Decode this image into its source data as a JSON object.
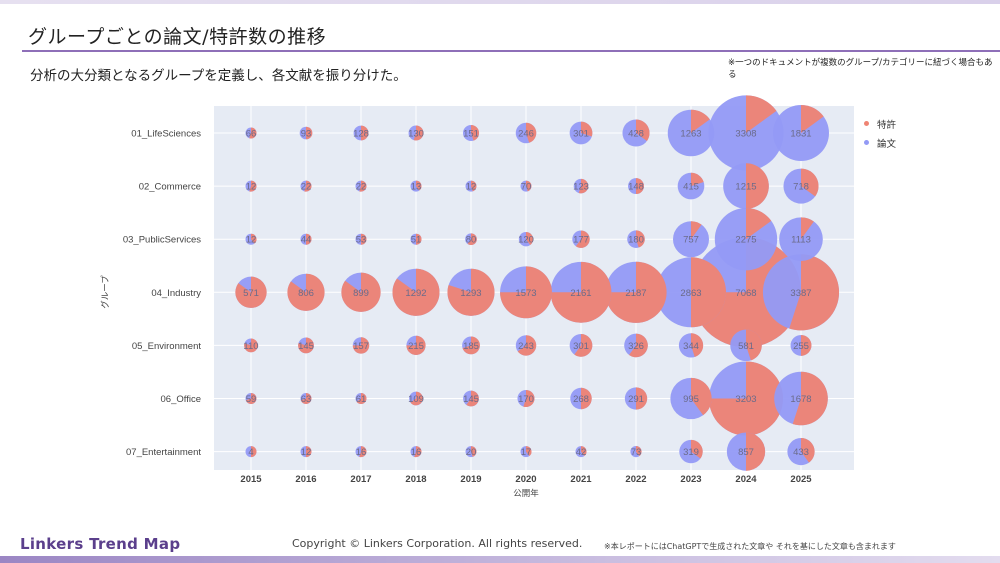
{
  "header": {
    "title": "グループごとの論文/特許数の推移",
    "subtitle": "分析の大分類となるグループを定義し、各文献を振り分けた。",
    "note": "※一つのドキュメントが複数のグループ/カテゴリーに紐づく場合もある"
  },
  "footer": {
    "logo": "Linkers Trend Map",
    "copyright": "Copyright © Linkers Corporation. All rights reserved.",
    "note": "※本レポートにはChatGPTで生成された文章や それを基にした文章も含まれます"
  },
  "colors": {
    "patent": "#ef8473",
    "paper": "#939af5",
    "plot_bg": "#e6ebf4",
    "title_rule": "#8e6fb8"
  },
  "legend": {
    "items": [
      {
        "label": "特許",
        "color": "#ef8473"
      },
      {
        "label": "論文",
        "color": "#939af5"
      }
    ]
  },
  "chart_data": {
    "type": "scatter",
    "subtype": "bubble-pie",
    "title": "",
    "xlabel": "公開年",
    "ylabel": "グループ",
    "x": [
      "2015",
      "2016",
      "2017",
      "2018",
      "2019",
      "2020",
      "2021",
      "2022",
      "2023",
      "2024",
      "2025"
    ],
    "categories": [
      "01_LifeSciences",
      "02_Commerce",
      "03_PublicServices",
      "04_Industry",
      "05_Environment",
      "06_Office",
      "07_Entertainment"
    ],
    "legend": [
      "特許",
      "論文"
    ],
    "legend_position": "right",
    "grid": true,
    "totals": [
      [
        66,
        93,
        128,
        130,
        151,
        246,
        301,
        428,
        1263,
        3308,
        1831
      ],
      [
        12,
        22,
        22,
        13,
        12,
        70,
        123,
        148,
        415,
        1215,
        718
      ],
      [
        12,
        44,
        53,
        51,
        80,
        120,
        177,
        180,
        757,
        2275,
        1113
      ],
      [
        571,
        806,
        899,
        1292,
        1293,
        1573,
        2161,
        2187,
        2863,
        7068,
        3387
      ],
      [
        110,
        145,
        157,
        215,
        185,
        243,
        301,
        326,
        344,
        581,
        255
      ],
      [
        59,
        63,
        61,
        109,
        145,
        170,
        268,
        291,
        995,
        3203,
        1678
      ],
      [
        4,
        12,
        16,
        16,
        20,
        17,
        42,
        73,
        319,
        857,
        433
      ]
    ],
    "patent_share": [
      [
        0.55,
        0.5,
        0.5,
        0.55,
        0.45,
        0.45,
        0.3,
        0.35,
        0.15,
        0.15,
        0.15
      ],
      [
        0.55,
        0.55,
        0.55,
        0.4,
        0.45,
        0.45,
        0.55,
        0.5,
        0.2,
        0.5,
        0.35
      ],
      [
        0.4,
        0.5,
        0.5,
        0.5,
        0.6,
        0.4,
        0.6,
        0.45,
        0.1,
        0.15,
        0.1
      ],
      [
        0.85,
        0.85,
        0.85,
        0.85,
        0.8,
        0.75,
        0.75,
        0.75,
        0.5,
        0.75,
        0.55
      ],
      [
        0.8,
        0.8,
        0.75,
        0.75,
        0.7,
        0.65,
        0.6,
        0.6,
        0.45,
        0.45,
        0.5
      ],
      [
        0.7,
        0.7,
        0.65,
        0.65,
        0.6,
        0.55,
        0.5,
        0.5,
        0.4,
        0.75,
        0.55
      ],
      [
        0.5,
        0.5,
        0.55,
        0.55,
        0.45,
        0.4,
        0.4,
        0.4,
        0.35,
        0.5,
        0.4
      ]
    ]
  }
}
